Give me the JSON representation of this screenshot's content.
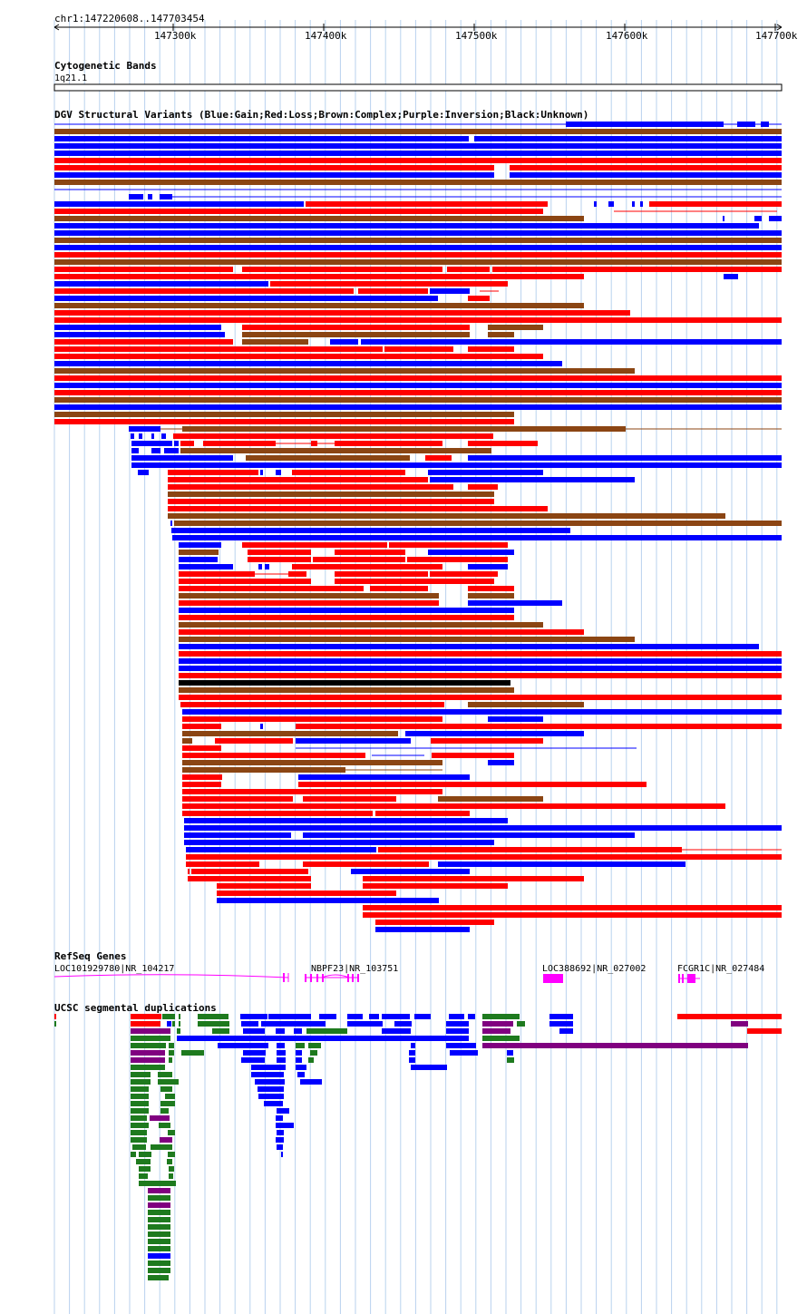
{
  "position_label": "chr1:147220608..147703454",
  "ruler": {
    "ticks": [
      "147300k",
      "147400k",
      "147500k",
      "147600k",
      "147700k"
    ]
  },
  "tracks": {
    "cytoband": {
      "title": "Cytogenetic Bands",
      "band": "1q21.1"
    },
    "dgv": {
      "title": "DGV Structural Variants (Blue:Gain;Red:Loss;Brown:Complex;Purple:Inversion;Black:Unknown)"
    },
    "refseq": {
      "title": "RefSeq Genes",
      "genes": [
        {
          "name": "LOC101929780|NR_104217"
        },
        {
          "name": "NBPF23|NR_103751"
        },
        {
          "name": "LOC388692|NR_027002"
        },
        {
          "name": "FCGR1C|NR_027484"
        }
      ]
    },
    "segdup": {
      "title": "UCSC segmental duplications"
    }
  },
  "colors": {
    "gain": "#0000ff",
    "loss": "#ff0000",
    "complex": "#8b4513",
    "inversion": "#800080",
    "unknown": "#000000",
    "segdup_green": "#1e7a1e",
    "gene": "#ff00ff",
    "gridline": "#b9d2ee"
  }
}
